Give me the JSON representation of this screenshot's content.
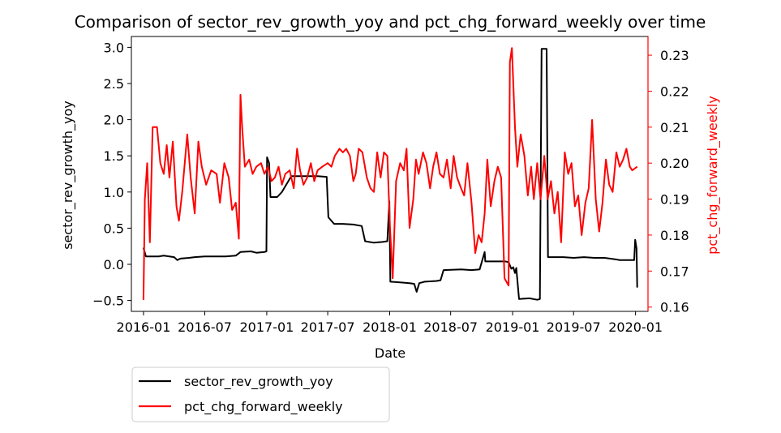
{
  "chart_data": {
    "type": "line",
    "title": "Comparison of sector_rev_growth_yoy and pct_chg_forward_weekly over time",
    "xlabel": "Date",
    "ylabel_left": "sector_rev_growth_yoy",
    "ylabel_right": "pct_chg_forward_weekly",
    "x_ticks": [
      "2016-01",
      "2016-07",
      "2017-01",
      "2017-07",
      "2018-01",
      "2018-07",
      "2019-01",
      "2019-07",
      "2020-01"
    ],
    "y_left_ticks": [
      "−0.5",
      "0.0",
      "0.5",
      "1.0",
      "1.5",
      "2.0",
      "2.5",
      "3.0"
    ],
    "y_right_ticks": [
      "0.16",
      "0.17",
      "0.18",
      "0.19",
      "0.20",
      "0.21",
      "0.22",
      "0.23"
    ],
    "ylim_left": [
      -0.65,
      3.15
    ],
    "ylim_right": [
      0.1588,
      0.2352
    ],
    "x_range": [
      "2015-11-26",
      "2020-02-07"
    ],
    "legend_position": "below-left",
    "grid": false,
    "series": [
      {
        "name": "sector_rev_growth_yoy",
        "axis": "left",
        "color": "#000000",
        "points": [
          [
            "2016-01-01",
            0.23
          ],
          [
            "2016-01-08",
            0.11
          ],
          [
            "2016-02-15",
            0.11
          ],
          [
            "2016-03-01",
            0.12
          ],
          [
            "2016-04-01",
            0.1
          ],
          [
            "2016-04-10",
            0.06
          ],
          [
            "2016-04-20",
            0.08
          ],
          [
            "2016-05-15",
            0.09
          ],
          [
            "2016-06-01",
            0.1
          ],
          [
            "2016-07-01",
            0.11
          ],
          [
            "2016-08-01",
            0.11
          ],
          [
            "2016-09-01",
            0.11
          ],
          [
            "2016-10-01",
            0.12
          ],
          [
            "2016-10-15",
            0.17
          ],
          [
            "2016-11-15",
            0.18
          ],
          [
            "2016-12-01",
            0.16
          ],
          [
            "2016-12-25",
            0.17
          ],
          [
            "2016-12-31",
            0.18
          ],
          [
            "2017-01-02",
            1.48
          ],
          [
            "2017-01-08",
            1.4
          ],
          [
            "2017-01-12",
            0.93
          ],
          [
            "2017-02-01",
            0.93
          ],
          [
            "2017-02-15",
            1.0
          ],
          [
            "2017-03-15",
            1.22
          ],
          [
            "2017-06-01",
            1.22
          ],
          [
            "2017-06-28",
            1.21
          ],
          [
            "2017-07-03",
            0.65
          ],
          [
            "2017-07-20",
            0.56
          ],
          [
            "2017-08-15",
            0.56
          ],
          [
            "2017-09-15",
            0.55
          ],
          [
            "2017-10-10",
            0.53
          ],
          [
            "2017-10-20",
            0.32
          ],
          [
            "2017-11-15",
            0.3
          ],
          [
            "2017-12-10",
            0.31
          ],
          [
            "2017-12-25",
            0.32
          ],
          [
            "2017-12-31",
            0.87
          ],
          [
            "2018-01-03",
            -0.24
          ],
          [
            "2018-02-01",
            -0.25
          ],
          [
            "2018-03-01",
            -0.26
          ],
          [
            "2018-03-15",
            -0.27
          ],
          [
            "2018-03-22",
            -0.38
          ],
          [
            "2018-03-30",
            -0.26
          ],
          [
            "2018-04-15",
            -0.24
          ],
          [
            "2018-05-20",
            -0.23
          ],
          [
            "2018-06-01",
            -0.22
          ],
          [
            "2018-06-10",
            -0.08
          ],
          [
            "2018-08-01",
            -0.07
          ],
          [
            "2018-09-01",
            -0.08
          ],
          [
            "2018-09-25",
            -0.07
          ],
          [
            "2018-10-10",
            0.17
          ],
          [
            "2018-10-12",
            0.04
          ],
          [
            "2018-12-10",
            0.04
          ],
          [
            "2018-12-20",
            0.03
          ],
          [
            "2018-12-28",
            -0.06
          ],
          [
            "2019-01-03",
            -0.04
          ],
          [
            "2019-01-08",
            -0.12
          ],
          [
            "2019-01-12",
            -0.05
          ],
          [
            "2019-01-20",
            -0.48
          ],
          [
            "2019-02-20",
            -0.47
          ],
          [
            "2019-03-15",
            -0.49
          ],
          [
            "2019-03-23",
            -0.48
          ],
          [
            "2019-03-28",
            2.98
          ],
          [
            "2019-04-12",
            2.98
          ],
          [
            "2019-04-16",
            0.1
          ],
          [
            "2019-06-01",
            0.1
          ],
          [
            "2019-07-01",
            0.09
          ],
          [
            "2019-08-01",
            0.1
          ],
          [
            "2019-09-01",
            0.09
          ],
          [
            "2019-10-01",
            0.09
          ],
          [
            "2019-11-01",
            0.07
          ],
          [
            "2019-11-15",
            0.06
          ],
          [
            "2019-12-15",
            0.06
          ],
          [
            "2019-12-28",
            0.06
          ],
          [
            "2019-12-31",
            0.34
          ],
          [
            "2020-01-04",
            0.22
          ],
          [
            "2020-01-06",
            -0.32
          ]
        ]
      },
      {
        "name": "pct_chg_forward_weekly",
        "axis": "right",
        "color": "#ff0000",
        "points": [
          [
            "2016-01-01",
            0.162
          ],
          [
            "2016-01-05",
            0.19
          ],
          [
            "2016-01-12",
            0.2
          ],
          [
            "2016-01-20",
            0.178
          ],
          [
            "2016-01-28",
            0.21
          ],
          [
            "2016-02-10",
            0.21
          ],
          [
            "2016-02-20",
            0.2
          ],
          [
            "2016-03-01",
            0.197
          ],
          [
            "2016-03-10",
            0.205
          ],
          [
            "2016-03-18",
            0.196
          ],
          [
            "2016-03-28",
            0.206
          ],
          [
            "2016-04-08",
            0.188
          ],
          [
            "2016-04-15",
            0.184
          ],
          [
            "2016-04-25",
            0.192
          ],
          [
            "2016-05-10",
            0.208
          ],
          [
            "2016-05-20",
            0.196
          ],
          [
            "2016-06-01",
            0.186
          ],
          [
            "2016-06-12",
            0.206
          ],
          [
            "2016-06-22",
            0.199
          ],
          [
            "2016-07-05",
            0.194
          ],
          [
            "2016-07-20",
            0.198
          ],
          [
            "2016-08-05",
            0.197
          ],
          [
            "2016-08-15",
            0.189
          ],
          [
            "2016-08-28",
            0.2
          ],
          [
            "2016-09-10",
            0.196
          ],
          [
            "2016-09-20",
            0.187
          ],
          [
            "2016-10-01",
            0.189
          ],
          [
            "2016-10-10",
            0.179
          ],
          [
            "2016-10-15",
            0.219
          ],
          [
            "2016-10-20",
            0.21
          ],
          [
            "2016-10-28",
            0.199
          ],
          [
            "2016-11-10",
            0.201
          ],
          [
            "2016-11-20",
            0.197
          ],
          [
            "2016-12-01",
            0.199
          ],
          [
            "2016-12-15",
            0.2
          ],
          [
            "2016-12-25",
            0.197
          ],
          [
            "2017-01-05",
            0.199
          ],
          [
            "2017-01-15",
            0.195
          ],
          [
            "2017-01-25",
            0.196
          ],
          [
            "2017-02-05",
            0.199
          ],
          [
            "2017-02-15",
            0.194
          ],
          [
            "2017-02-25",
            0.197
          ],
          [
            "2017-03-10",
            0.198
          ],
          [
            "2017-03-22",
            0.193
          ],
          [
            "2017-04-01",
            0.204
          ],
          [
            "2017-04-10",
            0.198
          ],
          [
            "2017-04-20",
            0.194
          ],
          [
            "2017-05-01",
            0.196
          ],
          [
            "2017-05-12",
            0.2
          ],
          [
            "2017-05-22",
            0.195
          ],
          [
            "2017-06-01",
            0.198
          ],
          [
            "2017-06-15",
            0.199
          ],
          [
            "2017-07-01",
            0.2
          ],
          [
            "2017-07-12",
            0.199
          ],
          [
            "2017-07-22",
            0.202
          ],
          [
            "2017-08-05",
            0.204
          ],
          [
            "2017-08-15",
            0.203
          ],
          [
            "2017-08-25",
            0.204
          ],
          [
            "2017-09-05",
            0.202
          ],
          [
            "2017-09-15",
            0.195
          ],
          [
            "2017-09-22",
            0.197
          ],
          [
            "2017-10-01",
            0.204
          ],
          [
            "2017-10-12",
            0.203
          ],
          [
            "2017-10-25",
            0.196
          ],
          [
            "2017-11-05",
            0.193
          ],
          [
            "2017-11-15",
            0.192
          ],
          [
            "2017-11-25",
            0.203
          ],
          [
            "2017-12-05",
            0.196
          ],
          [
            "2017-12-15",
            0.203
          ],
          [
            "2017-12-25",
            0.202
          ],
          [
            "2018-01-02",
            0.182
          ],
          [
            "2018-01-10",
            0.168
          ],
          [
            "2018-01-20",
            0.195
          ],
          [
            "2018-02-01",
            0.2
          ],
          [
            "2018-02-12",
            0.198
          ],
          [
            "2018-02-20",
            0.204
          ],
          [
            "2018-03-01",
            0.182
          ],
          [
            "2018-03-12",
            0.19
          ],
          [
            "2018-03-20",
            0.201
          ],
          [
            "2018-03-28",
            0.197
          ],
          [
            "2018-04-10",
            0.203
          ],
          [
            "2018-04-20",
            0.2
          ],
          [
            "2018-05-01",
            0.193
          ],
          [
            "2018-05-10",
            0.199
          ],
          [
            "2018-05-20",
            0.203
          ],
          [
            "2018-05-30",
            0.197
          ],
          [
            "2018-06-10",
            0.196
          ],
          [
            "2018-06-20",
            0.201
          ],
          [
            "2018-07-01",
            0.193
          ],
          [
            "2018-07-10",
            0.202
          ],
          [
            "2018-07-20",
            0.196
          ],
          [
            "2018-08-01",
            0.193
          ],
          [
            "2018-08-10",
            0.191
          ],
          [
            "2018-08-20",
            0.2
          ],
          [
            "2018-09-01",
            0.189
          ],
          [
            "2018-09-12",
            0.175
          ],
          [
            "2018-09-22",
            0.18
          ],
          [
            "2018-10-01",
            0.178
          ],
          [
            "2018-10-10",
            0.186
          ],
          [
            "2018-10-18",
            0.201
          ],
          [
            "2018-10-28",
            0.188
          ],
          [
            "2018-11-08",
            0.195
          ],
          [
            "2018-11-18",
            0.199
          ],
          [
            "2018-11-28",
            0.196
          ],
          [
            "2018-12-08",
            0.168
          ],
          [
            "2018-12-20",
            0.166
          ],
          [
            "2018-12-24",
            0.228
          ],
          [
            "2018-12-30",
            0.232
          ],
          [
            "2019-01-08",
            0.21
          ],
          [
            "2019-01-15",
            0.199
          ],
          [
            "2019-01-25",
            0.208
          ],
          [
            "2019-02-05",
            0.202
          ],
          [
            "2019-02-15",
            0.191
          ],
          [
            "2019-02-25",
            0.199
          ],
          [
            "2019-03-05",
            0.19
          ],
          [
            "2019-03-15",
            0.2
          ],
          [
            "2019-03-25",
            0.19
          ],
          [
            "2019-04-05",
            0.202
          ],
          [
            "2019-04-15",
            0.19
          ],
          [
            "2019-04-25",
            0.195
          ],
          [
            "2019-05-05",
            0.186
          ],
          [
            "2019-05-15",
            0.192
          ],
          [
            "2019-05-25",
            0.178
          ],
          [
            "2019-06-05",
            0.203
          ],
          [
            "2019-06-15",
            0.197
          ],
          [
            "2019-06-25",
            0.2
          ],
          [
            "2019-07-05",
            0.188
          ],
          [
            "2019-07-15",
            0.191
          ],
          [
            "2019-07-25",
            0.18
          ],
          [
            "2019-08-05",
            0.189
          ],
          [
            "2019-08-15",
            0.193
          ],
          [
            "2019-08-25",
            0.212
          ],
          [
            "2019-09-05",
            0.19
          ],
          [
            "2019-09-15",
            0.181
          ],
          [
            "2019-09-25",
            0.189
          ],
          [
            "2019-10-05",
            0.201
          ],
          [
            "2019-10-15",
            0.194
          ],
          [
            "2019-10-25",
            0.192
          ],
          [
            "2019-11-05",
            0.203
          ],
          [
            "2019-11-15",
            0.199
          ],
          [
            "2019-11-25",
            0.201
          ],
          [
            "2019-12-05",
            0.204
          ],
          [
            "2019-12-15",
            0.199
          ],
          [
            "2019-12-22",
            0.198
          ],
          [
            "2020-01-06",
            0.199
          ]
        ]
      }
    ]
  }
}
